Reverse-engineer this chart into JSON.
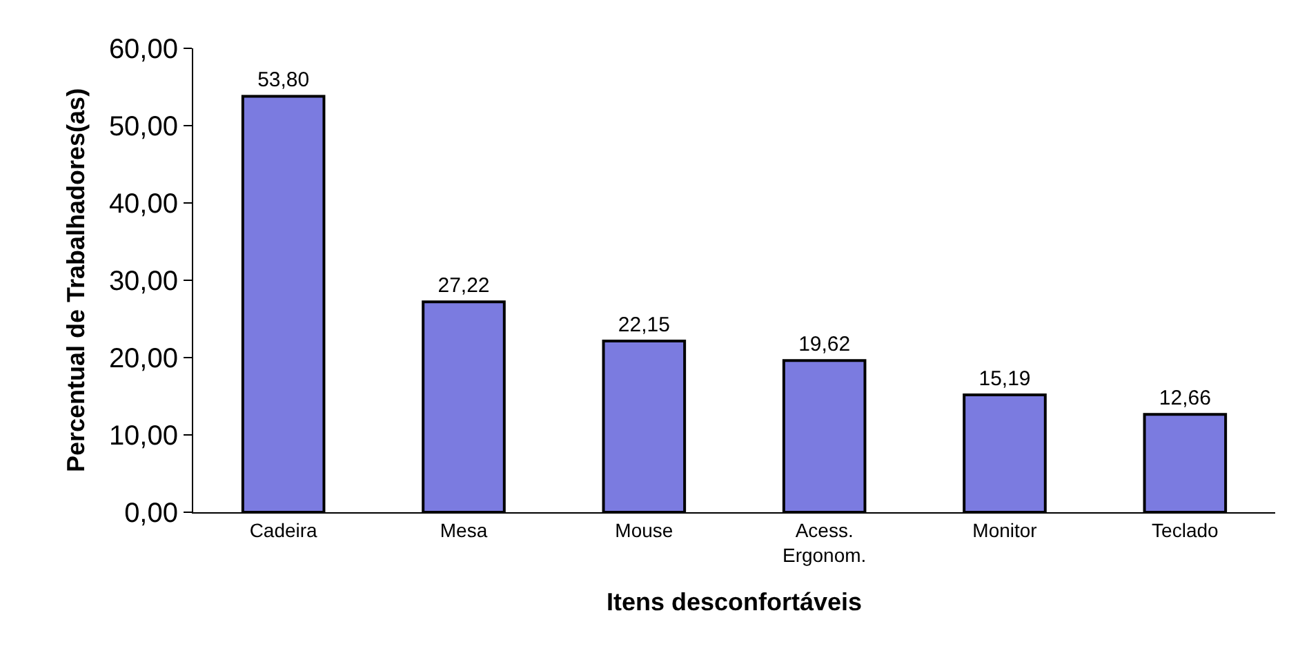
{
  "chart_data": {
    "type": "bar",
    "xlabel": "Itens desconfortáveis",
    "ylabel": "Percentual de Trabalhadores(as)",
    "categories": [
      "Cadeira",
      "Mesa",
      "Mouse",
      "Acess.\nErgonom.",
      "Monitor",
      "Teclado"
    ],
    "values": [
      53.8,
      27.22,
      22.15,
      19.62,
      15.19,
      12.66
    ],
    "value_labels": [
      "53,80",
      "27,22",
      "22,15",
      "19,62",
      "15,19",
      "12,66"
    ],
    "color": "#7b7be0",
    "ylim": [
      0,
      60
    ],
    "yticks": [
      {
        "value": 0,
        "label": "0,00"
      },
      {
        "value": 10,
        "label": "10,00"
      },
      {
        "value": 20,
        "label": "20,00"
      },
      {
        "value": 30,
        "label": "30,00"
      },
      {
        "value": 40,
        "label": "40,00"
      },
      {
        "value": 50,
        "label": "50,00"
      },
      {
        "value": 60,
        "label": "60,00"
      }
    ],
    "grid": false
  }
}
